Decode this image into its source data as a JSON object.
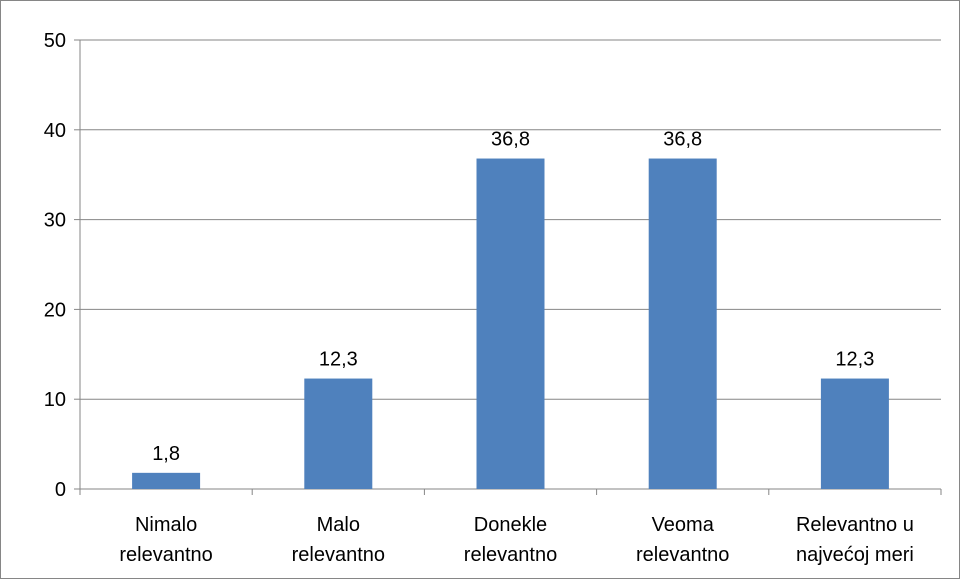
{
  "chart_data": {
    "type": "bar",
    "categories": [
      [
        "Nimalo",
        "relevantno"
      ],
      [
        "Malo",
        "relevantno"
      ],
      [
        "Donekle",
        "relevantno"
      ],
      [
        "Veoma",
        "relevantno"
      ],
      [
        "Relevantno u",
        "najvećoj meri"
      ]
    ],
    "values": [
      1.8,
      12.3,
      36.8,
      36.8,
      12.3
    ],
    "data_labels": [
      "1,8",
      "12,3",
      "36,8",
      "36,8",
      "12,3"
    ],
    "title": "",
    "xlabel": "",
    "ylabel": "",
    "ylim": [
      0,
      50
    ],
    "yticks": [
      0,
      10,
      20,
      30,
      40,
      50
    ],
    "grid": true,
    "legend": "none",
    "bar_color": "#4F81BD",
    "grid_color": "#868686"
  }
}
